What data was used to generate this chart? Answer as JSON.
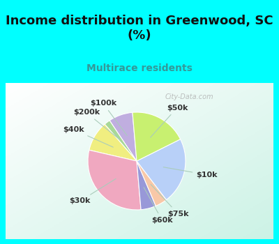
{
  "title": "Income distribution in Greenwood, SC\n(%)",
  "subtitle": "Multirace residents",
  "title_color": "#111111",
  "subtitle_color": "#339999",
  "bg_cyan": "#00ffff",
  "bg_chart_color1": "#f0faf5",
  "bg_chart_color2": "#c8eedd",
  "labels": [
    "$100k",
    "$200k",
    "$40k",
    "$30k",
    "$60k",
    "$75k",
    "$10k",
    "$50k"
  ],
  "values": [
    8,
    2,
    10,
    30,
    5,
    4,
    22,
    19
  ],
  "colors": [
    "#c0aee0",
    "#a8d898",
    "#f0ee80",
    "#f0a8c0",
    "#9898d8",
    "#f8c8a8",
    "#b8d0f8",
    "#c8f070"
  ],
  "watermark": "City-Data.com",
  "label_fontsize": 8,
  "title_fontsize": 13
}
